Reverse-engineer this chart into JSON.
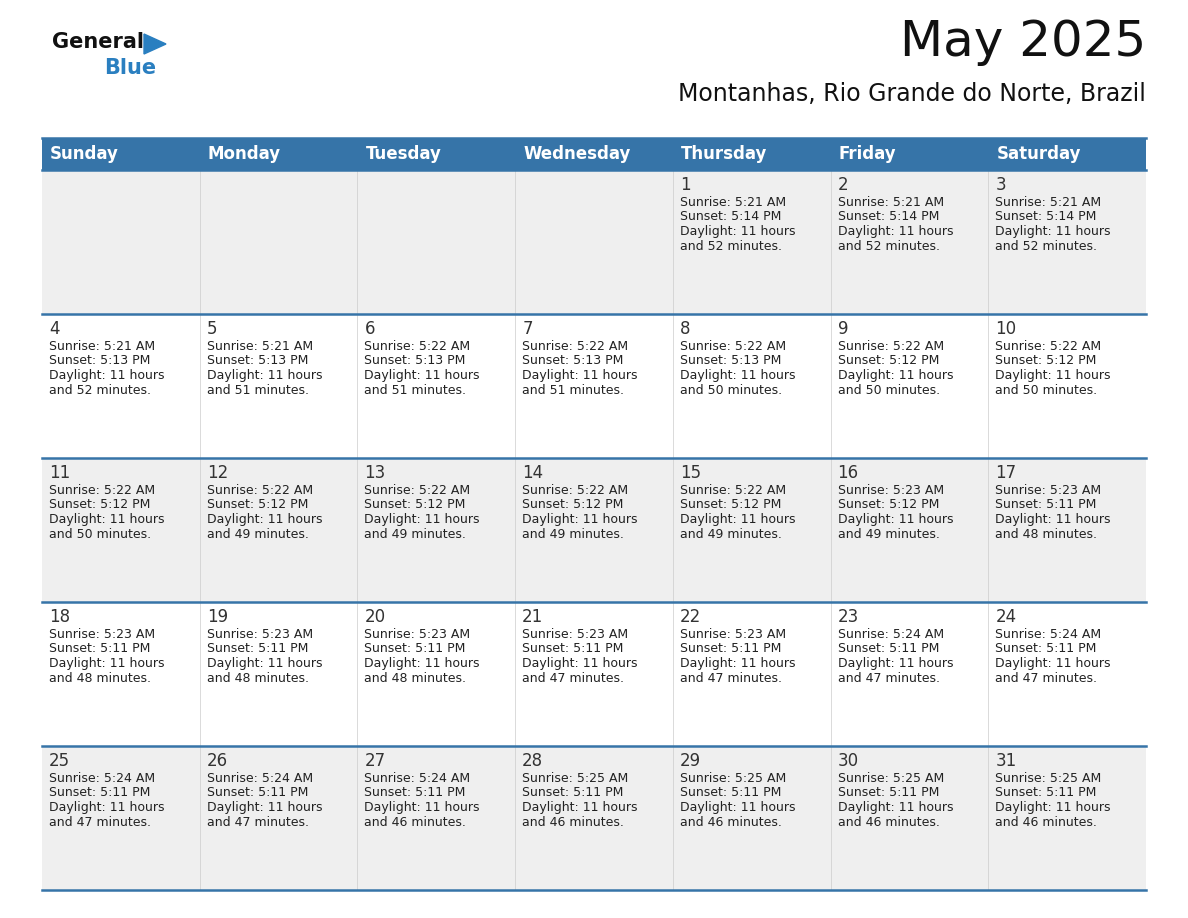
{
  "title": "May 2025",
  "subtitle": "Montanhas, Rio Grande do Norte, Brazil",
  "header_color": "#3674a8",
  "header_text_color": "#ffffff",
  "cell_bg_odd": "#efefef",
  "cell_bg_even": "#ffffff",
  "text_color": "#222222",
  "day_number_color": "#333333",
  "border_color": "#3674a8",
  "days_of_week": [
    "Sunday",
    "Monday",
    "Tuesday",
    "Wednesday",
    "Thursday",
    "Friday",
    "Saturday"
  ],
  "calendar": [
    [
      null,
      null,
      null,
      null,
      {
        "day": 1,
        "sunrise": "5:21 AM",
        "sunset": "5:14 PM",
        "daylight_hours": 11,
        "daylight_minutes": 52
      },
      {
        "day": 2,
        "sunrise": "5:21 AM",
        "sunset": "5:14 PM",
        "daylight_hours": 11,
        "daylight_minutes": 52
      },
      {
        "day": 3,
        "sunrise": "5:21 AM",
        "sunset": "5:14 PM",
        "daylight_hours": 11,
        "daylight_minutes": 52
      }
    ],
    [
      {
        "day": 4,
        "sunrise": "5:21 AM",
        "sunset": "5:13 PM",
        "daylight_hours": 11,
        "daylight_minutes": 52
      },
      {
        "day": 5,
        "sunrise": "5:21 AM",
        "sunset": "5:13 PM",
        "daylight_hours": 11,
        "daylight_minutes": 51
      },
      {
        "day": 6,
        "sunrise": "5:22 AM",
        "sunset": "5:13 PM",
        "daylight_hours": 11,
        "daylight_minutes": 51
      },
      {
        "day": 7,
        "sunrise": "5:22 AM",
        "sunset": "5:13 PM",
        "daylight_hours": 11,
        "daylight_minutes": 51
      },
      {
        "day": 8,
        "sunrise": "5:22 AM",
        "sunset": "5:13 PM",
        "daylight_hours": 11,
        "daylight_minutes": 50
      },
      {
        "day": 9,
        "sunrise": "5:22 AM",
        "sunset": "5:12 PM",
        "daylight_hours": 11,
        "daylight_minutes": 50
      },
      {
        "day": 10,
        "sunrise": "5:22 AM",
        "sunset": "5:12 PM",
        "daylight_hours": 11,
        "daylight_minutes": 50
      }
    ],
    [
      {
        "day": 11,
        "sunrise": "5:22 AM",
        "sunset": "5:12 PM",
        "daylight_hours": 11,
        "daylight_minutes": 50
      },
      {
        "day": 12,
        "sunrise": "5:22 AM",
        "sunset": "5:12 PM",
        "daylight_hours": 11,
        "daylight_minutes": 49
      },
      {
        "day": 13,
        "sunrise": "5:22 AM",
        "sunset": "5:12 PM",
        "daylight_hours": 11,
        "daylight_minutes": 49
      },
      {
        "day": 14,
        "sunrise": "5:22 AM",
        "sunset": "5:12 PM",
        "daylight_hours": 11,
        "daylight_minutes": 49
      },
      {
        "day": 15,
        "sunrise": "5:22 AM",
        "sunset": "5:12 PM",
        "daylight_hours": 11,
        "daylight_minutes": 49
      },
      {
        "day": 16,
        "sunrise": "5:23 AM",
        "sunset": "5:12 PM",
        "daylight_hours": 11,
        "daylight_minutes": 49
      },
      {
        "day": 17,
        "sunrise": "5:23 AM",
        "sunset": "5:11 PM",
        "daylight_hours": 11,
        "daylight_minutes": 48
      }
    ],
    [
      {
        "day": 18,
        "sunrise": "5:23 AM",
        "sunset": "5:11 PM",
        "daylight_hours": 11,
        "daylight_minutes": 48
      },
      {
        "day": 19,
        "sunrise": "5:23 AM",
        "sunset": "5:11 PM",
        "daylight_hours": 11,
        "daylight_minutes": 48
      },
      {
        "day": 20,
        "sunrise": "5:23 AM",
        "sunset": "5:11 PM",
        "daylight_hours": 11,
        "daylight_minutes": 48
      },
      {
        "day": 21,
        "sunrise": "5:23 AM",
        "sunset": "5:11 PM",
        "daylight_hours": 11,
        "daylight_minutes": 47
      },
      {
        "day": 22,
        "sunrise": "5:23 AM",
        "sunset": "5:11 PM",
        "daylight_hours": 11,
        "daylight_minutes": 47
      },
      {
        "day": 23,
        "sunrise": "5:24 AM",
        "sunset": "5:11 PM",
        "daylight_hours": 11,
        "daylight_minutes": 47
      },
      {
        "day": 24,
        "sunrise": "5:24 AM",
        "sunset": "5:11 PM",
        "daylight_hours": 11,
        "daylight_minutes": 47
      }
    ],
    [
      {
        "day": 25,
        "sunrise": "5:24 AM",
        "sunset": "5:11 PM",
        "daylight_hours": 11,
        "daylight_minutes": 47
      },
      {
        "day": 26,
        "sunrise": "5:24 AM",
        "sunset": "5:11 PM",
        "daylight_hours": 11,
        "daylight_minutes": 47
      },
      {
        "day": 27,
        "sunrise": "5:24 AM",
        "sunset": "5:11 PM",
        "daylight_hours": 11,
        "daylight_minutes": 46
      },
      {
        "day": 28,
        "sunrise": "5:25 AM",
        "sunset": "5:11 PM",
        "daylight_hours": 11,
        "daylight_minutes": 46
      },
      {
        "day": 29,
        "sunrise": "5:25 AM",
        "sunset": "5:11 PM",
        "daylight_hours": 11,
        "daylight_minutes": 46
      },
      {
        "day": 30,
        "sunrise": "5:25 AM",
        "sunset": "5:11 PM",
        "daylight_hours": 11,
        "daylight_minutes": 46
      },
      {
        "day": 31,
        "sunrise": "5:25 AM",
        "sunset": "5:11 PM",
        "daylight_hours": 11,
        "daylight_minutes": 46
      }
    ]
  ],
  "logo_text_general": "General",
  "logo_text_blue": "Blue",
  "logo_color_general": "#111111",
  "logo_color_blue": "#2a7fc0",
  "logo_triangle_color": "#2a7fc0",
  "title_fontsize": 36,
  "subtitle_fontsize": 17,
  "header_fontsize": 12,
  "day_num_fontsize": 12,
  "cell_text_fontsize": 9
}
